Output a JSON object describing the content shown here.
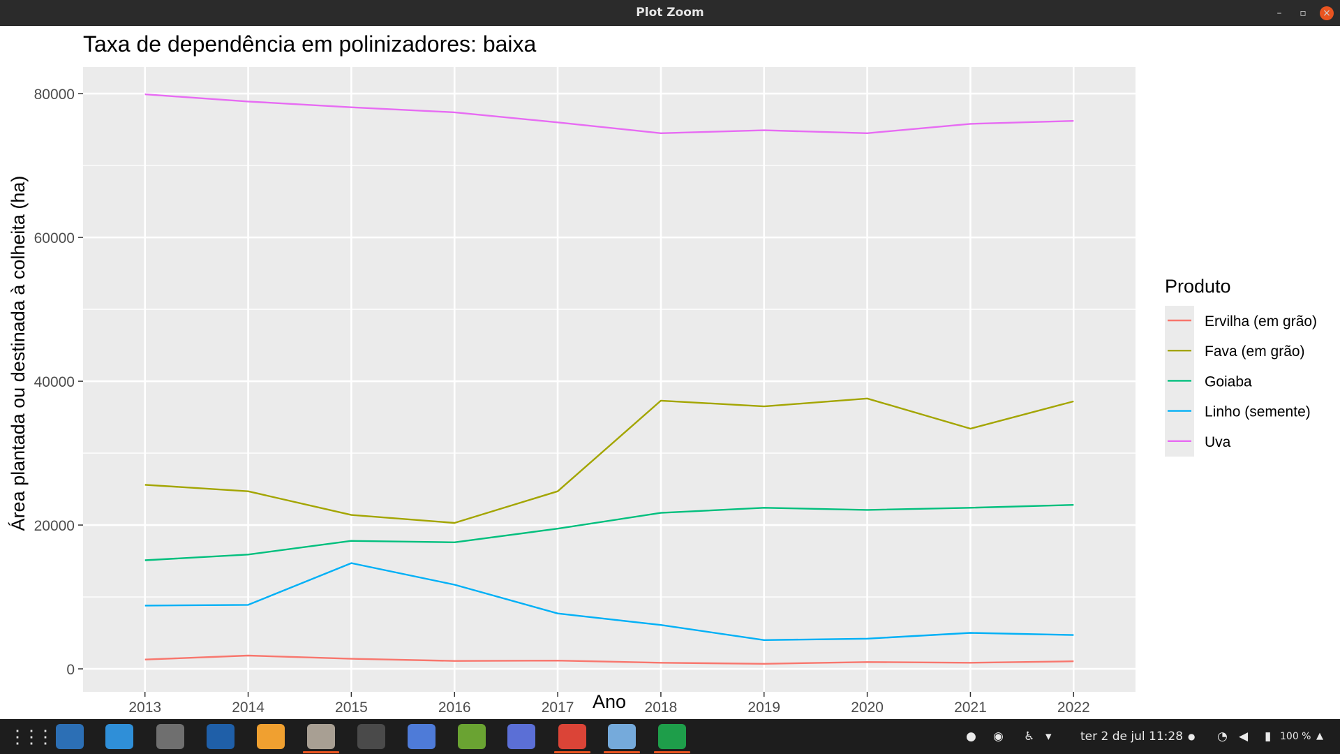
{
  "window": {
    "title": "Plot Zoom"
  },
  "plot": {
    "title": "Taxa de dependência em polinizadores: baixa",
    "chart_data": {
      "type": "line",
      "title": "Taxa de dependência em polinizadores: baixa",
      "xlabel": "Ano",
      "ylabel": "Área plantada ou destinada à colheita (ha)",
      "x": [
        2013,
        2014,
        2015,
        2016,
        2017,
        2018,
        2019,
        2020,
        2021,
        2022
      ],
      "x_ticks": [
        "2013",
        "2014",
        "2015",
        "2016",
        "2017",
        "2018",
        "2019",
        "2020",
        "2021",
        "2022"
      ],
      "y_ticks": [
        "0",
        "20000",
        "40000",
        "60000",
        "80000"
      ],
      "ylim": [
        -3200,
        83700
      ],
      "grid": true,
      "legend": {
        "title": "Produto",
        "position": "right"
      },
      "series": [
        {
          "name": "Ervilha (em grão)",
          "color": "#F8766D",
          "values": [
            1300,
            1850,
            1400,
            1100,
            1150,
            850,
            700,
            950,
            850,
            1050
          ]
        },
        {
          "name": "Fava (em grão)",
          "color": "#A3A500",
          "values": [
            25600,
            24700,
            21400,
            20300,
            24700,
            37300,
            36500,
            37600,
            33400,
            37200
          ]
        },
        {
          "name": "Goiaba",
          "color": "#00BF7D",
          "values": [
            15100,
            15900,
            17800,
            17600,
            19500,
            21700,
            22400,
            22100,
            22400,
            22800
          ]
        },
        {
          "name": "Linho (semente)",
          "color": "#00B0F6",
          "values": [
            8800,
            8900,
            14700,
            11700,
            7700,
            6100,
            4000,
            4200,
            5000,
            4700
          ]
        },
        {
          "name": "Uva",
          "color": "#E76BF3",
          "values": [
            79900,
            78900,
            78100,
            77400,
            76000,
            74500,
            74900,
            74500,
            75800,
            76200
          ]
        }
      ]
    }
  },
  "taskbar": {
    "apps": [
      {
        "name": "app-grid-icon",
        "color": "#1d1d1d"
      },
      {
        "name": "software-updater-icon",
        "color": "#2c6fb5"
      },
      {
        "name": "help-icon",
        "color": "#2f8fd8"
      },
      {
        "name": "settings-icon",
        "color": "#6f6f6f"
      },
      {
        "name": "app-dark-blue-icon",
        "color": "#1f5fa8"
      },
      {
        "name": "photos-icon",
        "color": "#f0a030"
      },
      {
        "name": "files-icon",
        "color": "#a89f93"
      },
      {
        "name": "calculator-icon",
        "color": "#4a4a4a"
      },
      {
        "name": "tasks-icon",
        "color": "#4e7bd8"
      },
      {
        "name": "qgis-icon",
        "color": "#6aa332"
      },
      {
        "name": "screenshot-icon",
        "color": "#5b6fd6"
      },
      {
        "name": "chrome-icon",
        "color": "#db4437"
      },
      {
        "name": "rstudio-icon",
        "color": "#75aadb"
      },
      {
        "name": "spreadsheet-icon",
        "color": "#1e9e4a"
      }
    ],
    "clock": "ter 2 de jul  11:28",
    "battery": "100 %"
  }
}
